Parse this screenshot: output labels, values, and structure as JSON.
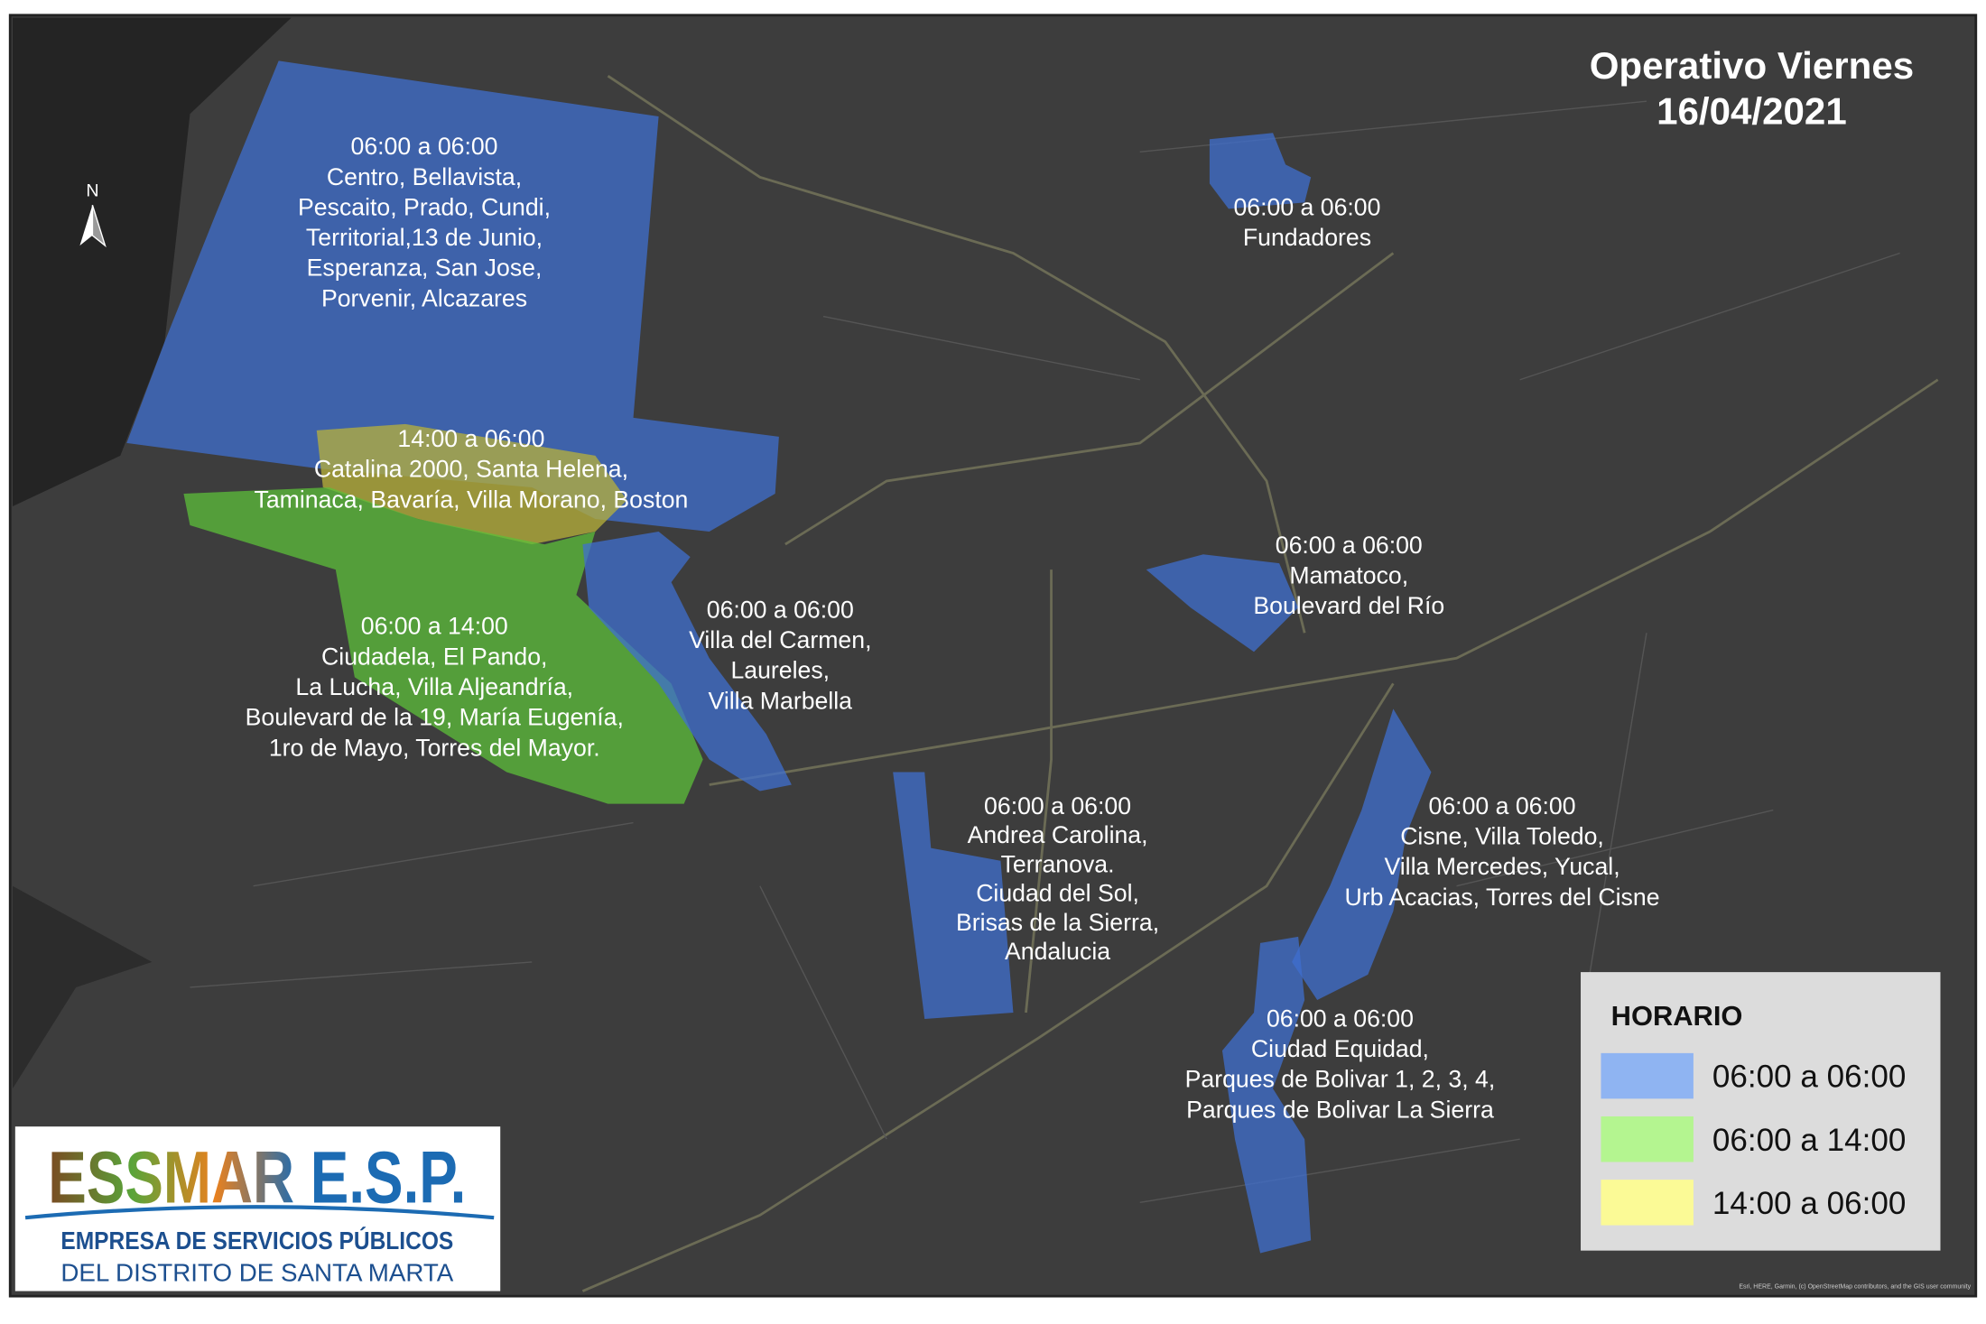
{
  "title": [
    "Operativo Viernes",
    "16/04/2021"
  ],
  "north": "N",
  "zones": [
    {
      "lines": [
        "06:00 a 06:00",
        "Centro, Bellavista,",
        "Pescaito, Prado, Cundi,",
        "Territorial,13 de Junio,",
        "Esperanza, San Jose,",
        "Porvenir, Alcazares"
      ]
    },
    {
      "lines": [
        "14:00 a 06:00",
        "Catalina 2000, Santa Helena,",
        "Taminaca, Bavaría, Villa Morano, Boston"
      ]
    },
    {
      "lines": [
        "06:00 a 14:00",
        "Ciudadela, El Pando,",
        "La Lucha, Villa Aljeandría,",
        "Boulevard de la 19, María Eugenía,",
        "1ro de Mayo, Torres del Mayor."
      ]
    },
    {
      "lines": [
        "06:00 a 06:00",
        "Villa del Carmen,",
        "Laureles,",
        "Villa Marbella"
      ]
    },
    {
      "lines": [
        "06:00 a 06:00",
        "Fundadores"
      ]
    },
    {
      "lines": [
        "06:00 a 06:00",
        "Mamatoco,",
        "Boulevard del Río"
      ]
    },
    {
      "lines": [
        "06:00 a 06:00",
        "Andrea Carolina,",
        "Terranova.",
        "Ciudad del Sol,",
        "Brisas de la Sierra,",
        "Andalucia"
      ]
    },
    {
      "lines": [
        "06:00 a 06:00",
        "Cisne, Villa Toledo,",
        "Villa Mercedes, Yucal,",
        "Urb Acacias, Torres del Cisne"
      ]
    },
    {
      "lines": [
        "06:00 a 06:00",
        "Ciudad Equidad,",
        "Parques de Bolivar 1, 2, 3, 4,",
        "Parques de Bolivar La Sierra"
      ]
    }
  ],
  "legend": {
    "title": "HORARIO",
    "items": [
      {
        "label": "06:00 a 06:00",
        "color": "#8fb4f2"
      },
      {
        "label": "06:00 a 14:00",
        "color": "#b4f590"
      },
      {
        "label": "14:00 a 06:00",
        "color": "#fbfa96"
      }
    ]
  },
  "logo": {
    "brand": "ESSMAR E.S.P.",
    "line1": "EMPRESA DE SERVICIOS PÚBLICOS",
    "line2": "DEL DISTRITO DE SANTA MARTA"
  },
  "attribution": "Esri, HERE, Garmin, (c) OpenStreetMap contributors, and the GIS user community"
}
